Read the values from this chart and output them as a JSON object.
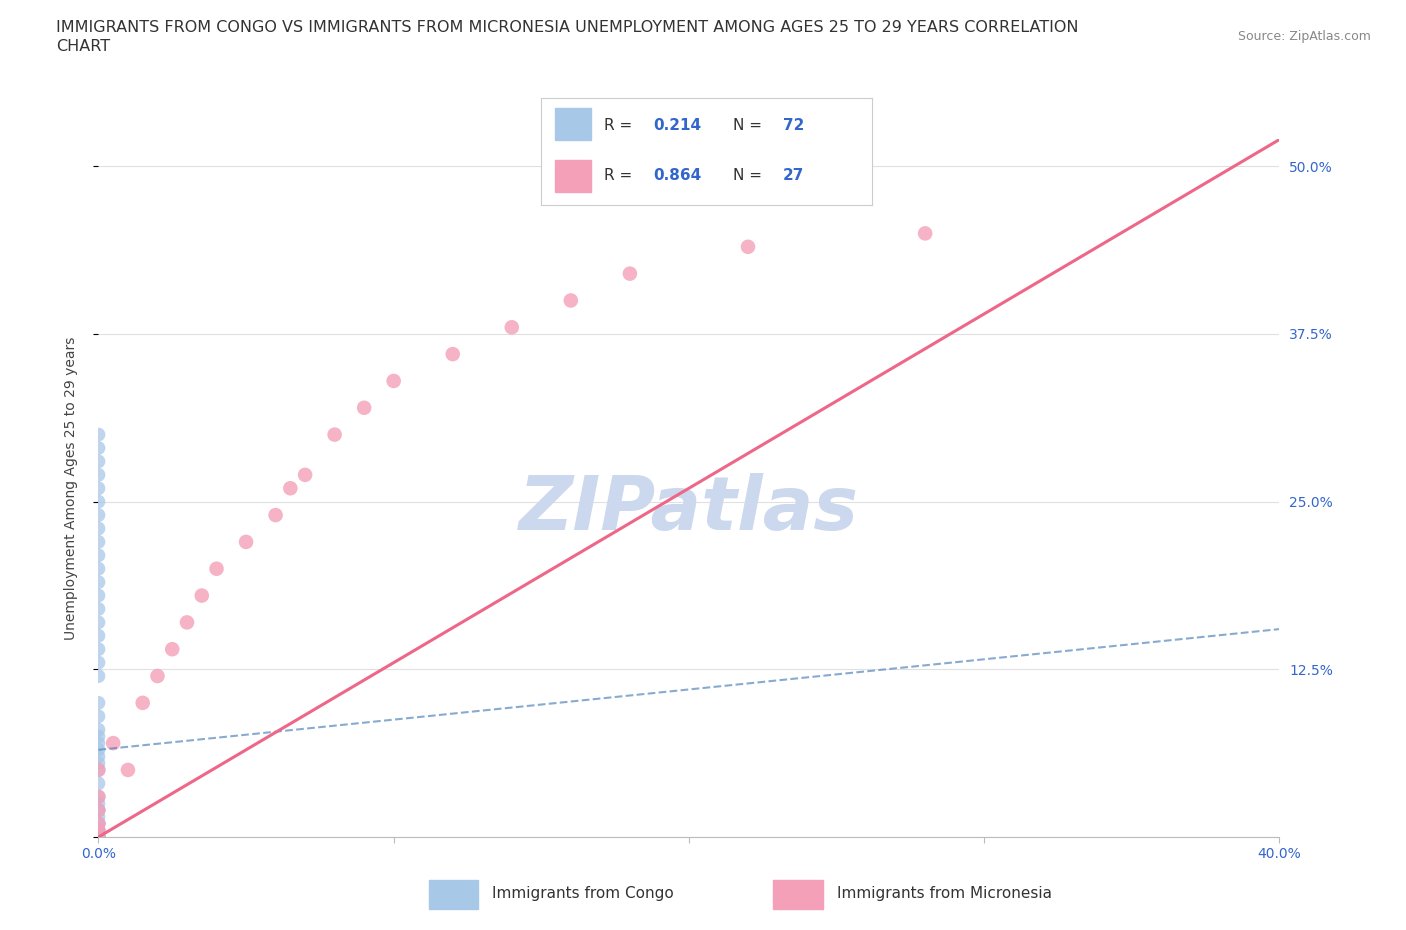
{
  "title_line1": "IMMIGRANTS FROM CONGO VS IMMIGRANTS FROM MICRONESIA UNEMPLOYMENT AMONG AGES 25 TO 29 YEARS CORRELATION",
  "title_line2": "CHART",
  "source_text": "Source: ZipAtlas.com",
  "ylabel": "Unemployment Among Ages 25 to 29 years",
  "xlim": [
    0.0,
    0.4
  ],
  "ylim": [
    0.0,
    0.52
  ],
  "xticks": [
    0.0,
    0.1,
    0.2,
    0.3,
    0.4
  ],
  "xticklabels": [
    "0.0%",
    "",
    "",
    "",
    "40.0%"
  ],
  "yticks": [
    0.0,
    0.125,
    0.25,
    0.375,
    0.5
  ],
  "yticklabels_right": [
    "",
    "12.5%",
    "25.0%",
    "37.5%",
    "50.0%"
  ],
  "congo_color": "#a8c8e8",
  "micronesia_color": "#f4a0b8",
  "congo_line_color": "#5588bb",
  "micronesia_line_color": "#ee6688",
  "legend_R_congo": "0.214",
  "legend_N_congo": "72",
  "legend_R_micronesia": "0.864",
  "legend_N_micronesia": "27",
  "watermark": "ZIPatlas",
  "watermark_color": "#ccd8ee",
  "grid_color": "#e0e0e0",
  "congo_scatter_x": [
    0.0,
    0.0,
    0.0,
    0.0,
    0.0,
    0.0,
    0.0,
    0.0,
    0.0,
    0.0,
    0.0,
    0.0,
    0.0,
    0.0,
    0.0,
    0.0,
    0.0,
    0.0,
    0.0,
    0.0,
    0.0,
    0.0,
    0.0,
    0.0,
    0.0,
    0.0,
    0.0,
    0.0,
    0.0,
    0.0,
    0.0,
    0.0,
    0.0,
    0.0,
    0.0,
    0.0,
    0.0,
    0.0,
    0.0,
    0.0,
    0.0,
    0.0,
    0.0,
    0.0,
    0.0,
    0.0,
    0.0,
    0.0,
    0.0,
    0.0,
    0.0,
    0.0,
    0.0,
    0.0,
    0.0,
    0.0,
    0.0,
    0.0,
    0.0,
    0.0,
    0.0,
    0.0,
    0.0,
    0.0,
    0.0,
    0.0,
    0.0,
    0.0,
    0.0,
    0.0,
    0.0,
    0.0
  ],
  "congo_scatter_y": [
    0.0,
    0.0,
    0.0,
    0.0,
    0.0,
    0.0,
    0.0,
    0.0,
    0.0,
    0.0,
    0.005,
    0.005,
    0.005,
    0.01,
    0.01,
    0.01,
    0.01,
    0.015,
    0.02,
    0.02,
    0.025,
    0.03,
    0.04,
    0.05,
    0.055,
    0.06,
    0.065,
    0.07,
    0.075,
    0.08,
    0.09,
    0.1,
    0.12,
    0.13,
    0.14,
    0.15,
    0.16,
    0.17,
    0.18,
    0.19,
    0.2,
    0.21,
    0.22,
    0.23,
    0.24,
    0.25,
    0.26,
    0.27,
    0.28,
    0.29,
    0.3,
    0.0,
    0.0,
    0.0,
    0.0,
    0.0,
    0.0,
    0.0,
    0.0,
    0.0,
    0.0,
    0.0,
    0.0,
    0.0,
    0.0,
    0.0,
    0.0,
    0.0,
    0.0,
    0.0,
    0.0,
    0.0
  ],
  "micronesia_scatter_x": [
    0.0,
    0.0,
    0.0,
    0.0,
    0.0,
    0.0,
    0.005,
    0.01,
    0.015,
    0.02,
    0.025,
    0.03,
    0.035,
    0.04,
    0.05,
    0.06,
    0.065,
    0.07,
    0.08,
    0.09,
    0.1,
    0.12,
    0.14,
    0.16,
    0.18,
    0.22,
    0.28
  ],
  "micronesia_scatter_y": [
    0.0,
    0.005,
    0.01,
    0.02,
    0.03,
    0.05,
    0.07,
    0.05,
    0.1,
    0.12,
    0.14,
    0.16,
    0.18,
    0.2,
    0.22,
    0.24,
    0.26,
    0.27,
    0.3,
    0.32,
    0.34,
    0.36,
    0.38,
    0.4,
    0.42,
    0.44,
    0.45
  ],
  "congo_trend_x": [
    0.0,
    0.4
  ],
  "congo_trend_y": [
    0.065,
    0.155
  ],
  "micronesia_trend_x": [
    0.0,
    0.4
  ],
  "micronesia_trend_y": [
    0.0,
    0.52
  ]
}
